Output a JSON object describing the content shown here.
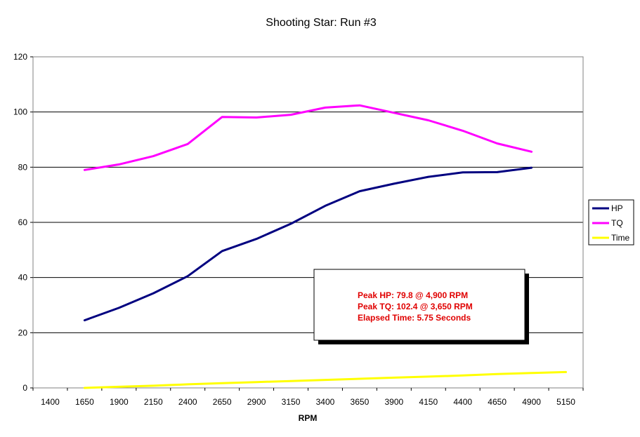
{
  "chart_data": {
    "type": "line",
    "title": "Shooting Star: Run #3",
    "xlabel": "RPM",
    "ylabel": "",
    "categories": [
      "1400",
      "1650",
      "1900",
      "2150",
      "2400",
      "2650",
      "2900",
      "3150",
      "3400",
      "3650",
      "3900",
      "4150",
      "4400",
      "4650",
      "4900",
      "5150"
    ],
    "ylim": [
      0,
      120
    ],
    "yticks": [
      0,
      20,
      40,
      60,
      80,
      100,
      120
    ],
    "grid": "horizontal",
    "legend_position": "right",
    "series": [
      {
        "name": "HP",
        "color": "#000080",
        "x": [
          1650,
          1900,
          2150,
          2400,
          2650,
          2900,
          3150,
          3400,
          3650,
          3900,
          4150,
          4400,
          4650,
          4900
        ],
        "values": [
          24.5,
          29,
          34.3,
          40.5,
          49.6,
          54,
          59.5,
          66,
          71.3,
          74,
          76.5,
          78.1,
          78.2,
          79.8
        ]
      },
      {
        "name": "TQ",
        "color": "#ff00ff",
        "x": [
          1650,
          1900,
          2150,
          2400,
          2650,
          2900,
          3150,
          3400,
          3650,
          3900,
          4150,
          4400,
          4650,
          4900
        ],
        "values": [
          79,
          81,
          84,
          88.4,
          98.2,
          98,
          99,
          101.6,
          102.4,
          99.7,
          97,
          93.2,
          88.6,
          85.6
        ]
      },
      {
        "name": "Time",
        "color": "#ffff00",
        "x": [
          1650,
          1900,
          2150,
          2400,
          2650,
          2900,
          3150,
          3400,
          3650,
          3900,
          4150,
          4400,
          4650,
          4900,
          5150
        ],
        "values": [
          0,
          0.4,
          0.8,
          1.3,
          1.7,
          2.1,
          2.5,
          2.9,
          3.3,
          3.7,
          4.1,
          4.5,
          5.0,
          5.4,
          5.75
        ]
      }
    ],
    "annotation": {
      "lines": [
        "Peak HP: 79.8 @ 4,900 RPM",
        "Peak TQ: 102.4 @ 3,650 RPM",
        "Elapsed Time: 5.75 Seconds"
      ],
      "text_color": "#e00000"
    },
    "colors": {
      "plot_background": "#ffffff",
      "gridline": "#000000",
      "border": "#808080"
    }
  }
}
